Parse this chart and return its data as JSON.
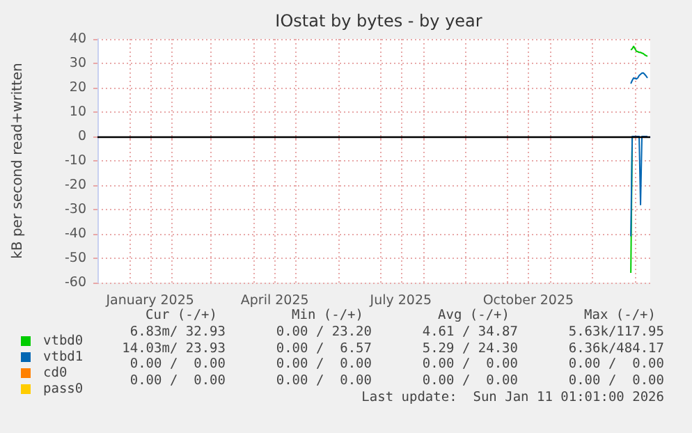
{
  "chart_data": {
    "type": "line",
    "title": "IOstat by bytes - by year",
    "ylabel": "kB per second read+written",
    "x": [
      "2025-12-29",
      "2025-12-30",
      "2025-12-31",
      "2026-01-01",
      "2026-01-02",
      "2026-01-03",
      "2026-01-04",
      "2026-01-05",
      "2026-01-06",
      "2026-01-07",
      "2026-01-08",
      "2026-01-09",
      "2026-01-10"
    ],
    "series": [
      {
        "name": "vtbd0",
        "color": "#00cc00",
        "values": [
          35.5,
          36,
          37,
          36,
          35,
          34.8,
          34.5,
          34.5,
          34.2,
          34,
          33.5,
          33.2,
          32.9
        ]
      },
      {
        "color": "#00cc00",
        "values": [
          -56,
          0,
          null,
          null,
          null,
          null,
          null,
          null,
          null,
          null,
          null,
          null,
          null
        ]
      },
      {
        "name": "vtbd1",
        "color": "#0066b3",
        "values": [
          21.7,
          23,
          24,
          23.8,
          23.6,
          24,
          25,
          25.5,
          26,
          26.1,
          25.5,
          24.8,
          24
        ]
      },
      {
        "color": "#0066b3",
        "values": [
          -41,
          0,
          0,
          0,
          0,
          0,
          0,
          -28,
          0,
          0,
          0,
          0,
          0
        ]
      },
      {
        "name": "cd0",
        "color": "#ff8000",
        "values": [
          null,
          null,
          null,
          null,
          null,
          null,
          null,
          null,
          null,
          null,
          null,
          null,
          null
        ]
      },
      {
        "name": "pass0",
        "color": "#ffcc00",
        "values": [
          null,
          null,
          null,
          null,
          null,
          null,
          null,
          null,
          null,
          null,
          null,
          null,
          null
        ]
      }
    ],
    "xlim": [
      "2024-12-09",
      "2026-01-12"
    ],
    "xticks": [
      {
        "value": "2025-01-01",
        "label": null
      },
      {
        "value": "2025-01-16",
        "label": "January 2025"
      },
      {
        "value": "2025-02-01",
        "label": null
      },
      {
        "value": "2025-03-01",
        "label": null
      },
      {
        "value": "2025-04-01",
        "label": null
      },
      {
        "value": "2025-04-16",
        "label": "April 2025"
      },
      {
        "value": "2025-05-01",
        "label": null
      },
      {
        "value": "2025-06-01",
        "label": null
      },
      {
        "value": "2025-07-01",
        "label": null
      },
      {
        "value": "2025-07-16",
        "label": "July 2025"
      },
      {
        "value": "2025-08-01",
        "label": null
      },
      {
        "value": "2025-09-01",
        "label": null
      },
      {
        "value": "2025-10-01",
        "label": null
      },
      {
        "value": "2025-10-16",
        "label": "October 2025"
      },
      {
        "value": "2025-11-01",
        "label": null
      },
      {
        "value": "2025-12-01",
        "label": null
      },
      {
        "value": "2026-01-01",
        "label": null
      }
    ],
    "ylim": [
      -60,
      40
    ],
    "yticks": [
      -60,
      -50,
      -40,
      -30,
      -20,
      -10,
      0,
      10,
      20,
      30,
      40
    ],
    "ref_lines": [
      {
        "axis": "y",
        "value": 0,
        "color": "#000000"
      }
    ],
    "grid": true,
    "legend": "bottom left",
    "marker": "none",
    "line_style": "solid",
    "annotations": [
      "Cur (-/+)",
      "Min (-/+)",
      "Avg (-/+)",
      "Max (-/+)",
      "6.83m/ 32.93",
      "0.00 / 23.20",
      "4.61 / 34.87",
      "5.63k/117.95",
      "14.03m/ 23.93",
      "0.00 /  6.57",
      "5.29 / 24.30",
      "6.36k/484.17",
      "0.00 /  0.00",
      "0.00 /  0.00",
      "0.00 /  0.00",
      "0.00 /  0.00",
      "0.00 /  0.00",
      "0.00 /  0.00",
      "0.00 /  0.00",
      "0.00 /  0.00",
      "Last update:  Sun Jan 11 01:01:00 2026"
    ]
  }
}
